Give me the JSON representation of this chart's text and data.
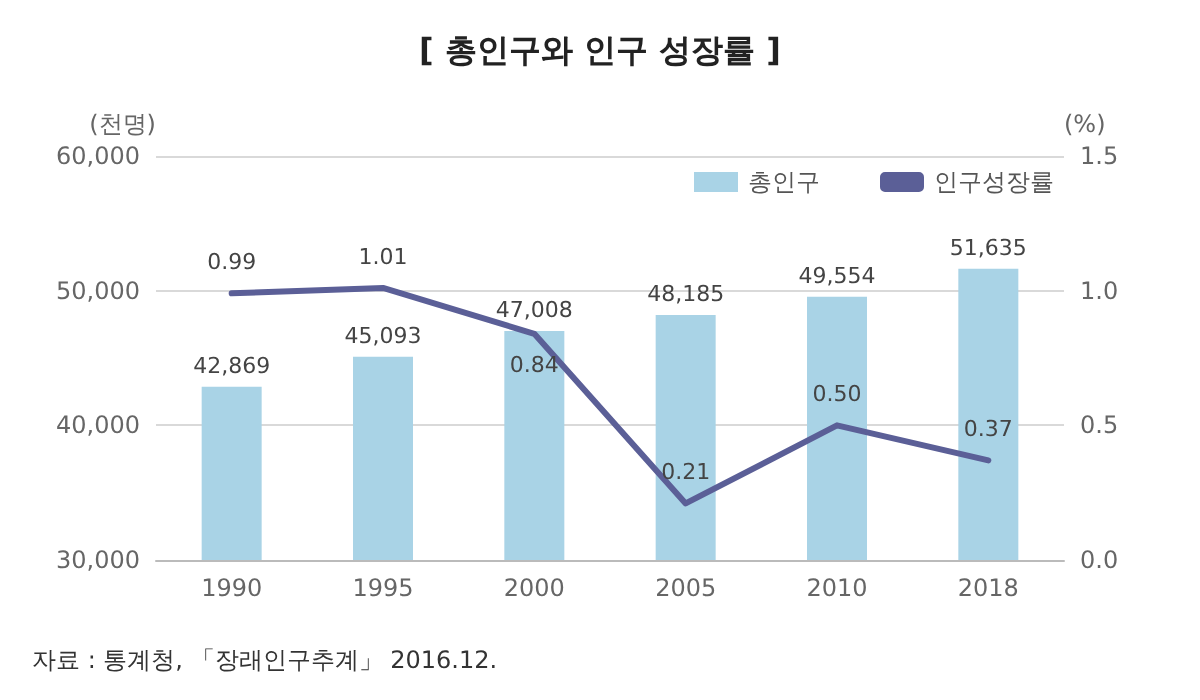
{
  "chart_data": {
    "type": "bar",
    "title": "[ 총인구와 인구 성장률 ]",
    "ylabel": "(천명)",
    "y2label": "(%)",
    "categories": [
      "1990",
      "1995",
      "2000",
      "2005",
      "2010",
      "2018"
    ],
    "series": [
      {
        "name": "총인구",
        "color": "#a9d3e6",
        "values": [
          42869,
          45093,
          47008,
          48185,
          49554,
          51635
        ],
        "value_labels": [
          "42,869",
          "45,093",
          "47,008",
          "48,185",
          "49,554",
          "51,635"
        ]
      },
      {
        "name": "인구성장률",
        "type": "line",
        "axis": "y2",
        "color": "#5b5f97",
        "values": [
          0.99,
          1.01,
          0.84,
          0.21,
          0.5,
          0.37
        ],
        "value_labels": [
          "0.99",
          "1.01",
          "0.84",
          "0.21",
          "0.50",
          "0.37"
        ]
      }
    ],
    "ylim": [
      30000,
      60000
    ],
    "yticks": [
      {
        "value": 30000,
        "label": "30,000"
      },
      {
        "value": 40000,
        "label": "40,000"
      },
      {
        "value": 50000,
        "label": "50,000"
      },
      {
        "value": 60000,
        "label": "60,000"
      }
    ],
    "y2lim": [
      0,
      1.5
    ],
    "y2ticks": [
      {
        "value": 0,
        "label": "0.0"
      },
      {
        "value": 0.5,
        "label": "0.5"
      },
      {
        "value": 1,
        "label": "1.0"
      },
      {
        "value": 1.5,
        "label": "1.5"
      }
    ],
    "grid": "y",
    "legend": "top right",
    "marker": "none",
    "line_style": "solid",
    "annotations": [
      "자료 : 통계청, 「장래인구추계」 2016.12."
    ]
  }
}
